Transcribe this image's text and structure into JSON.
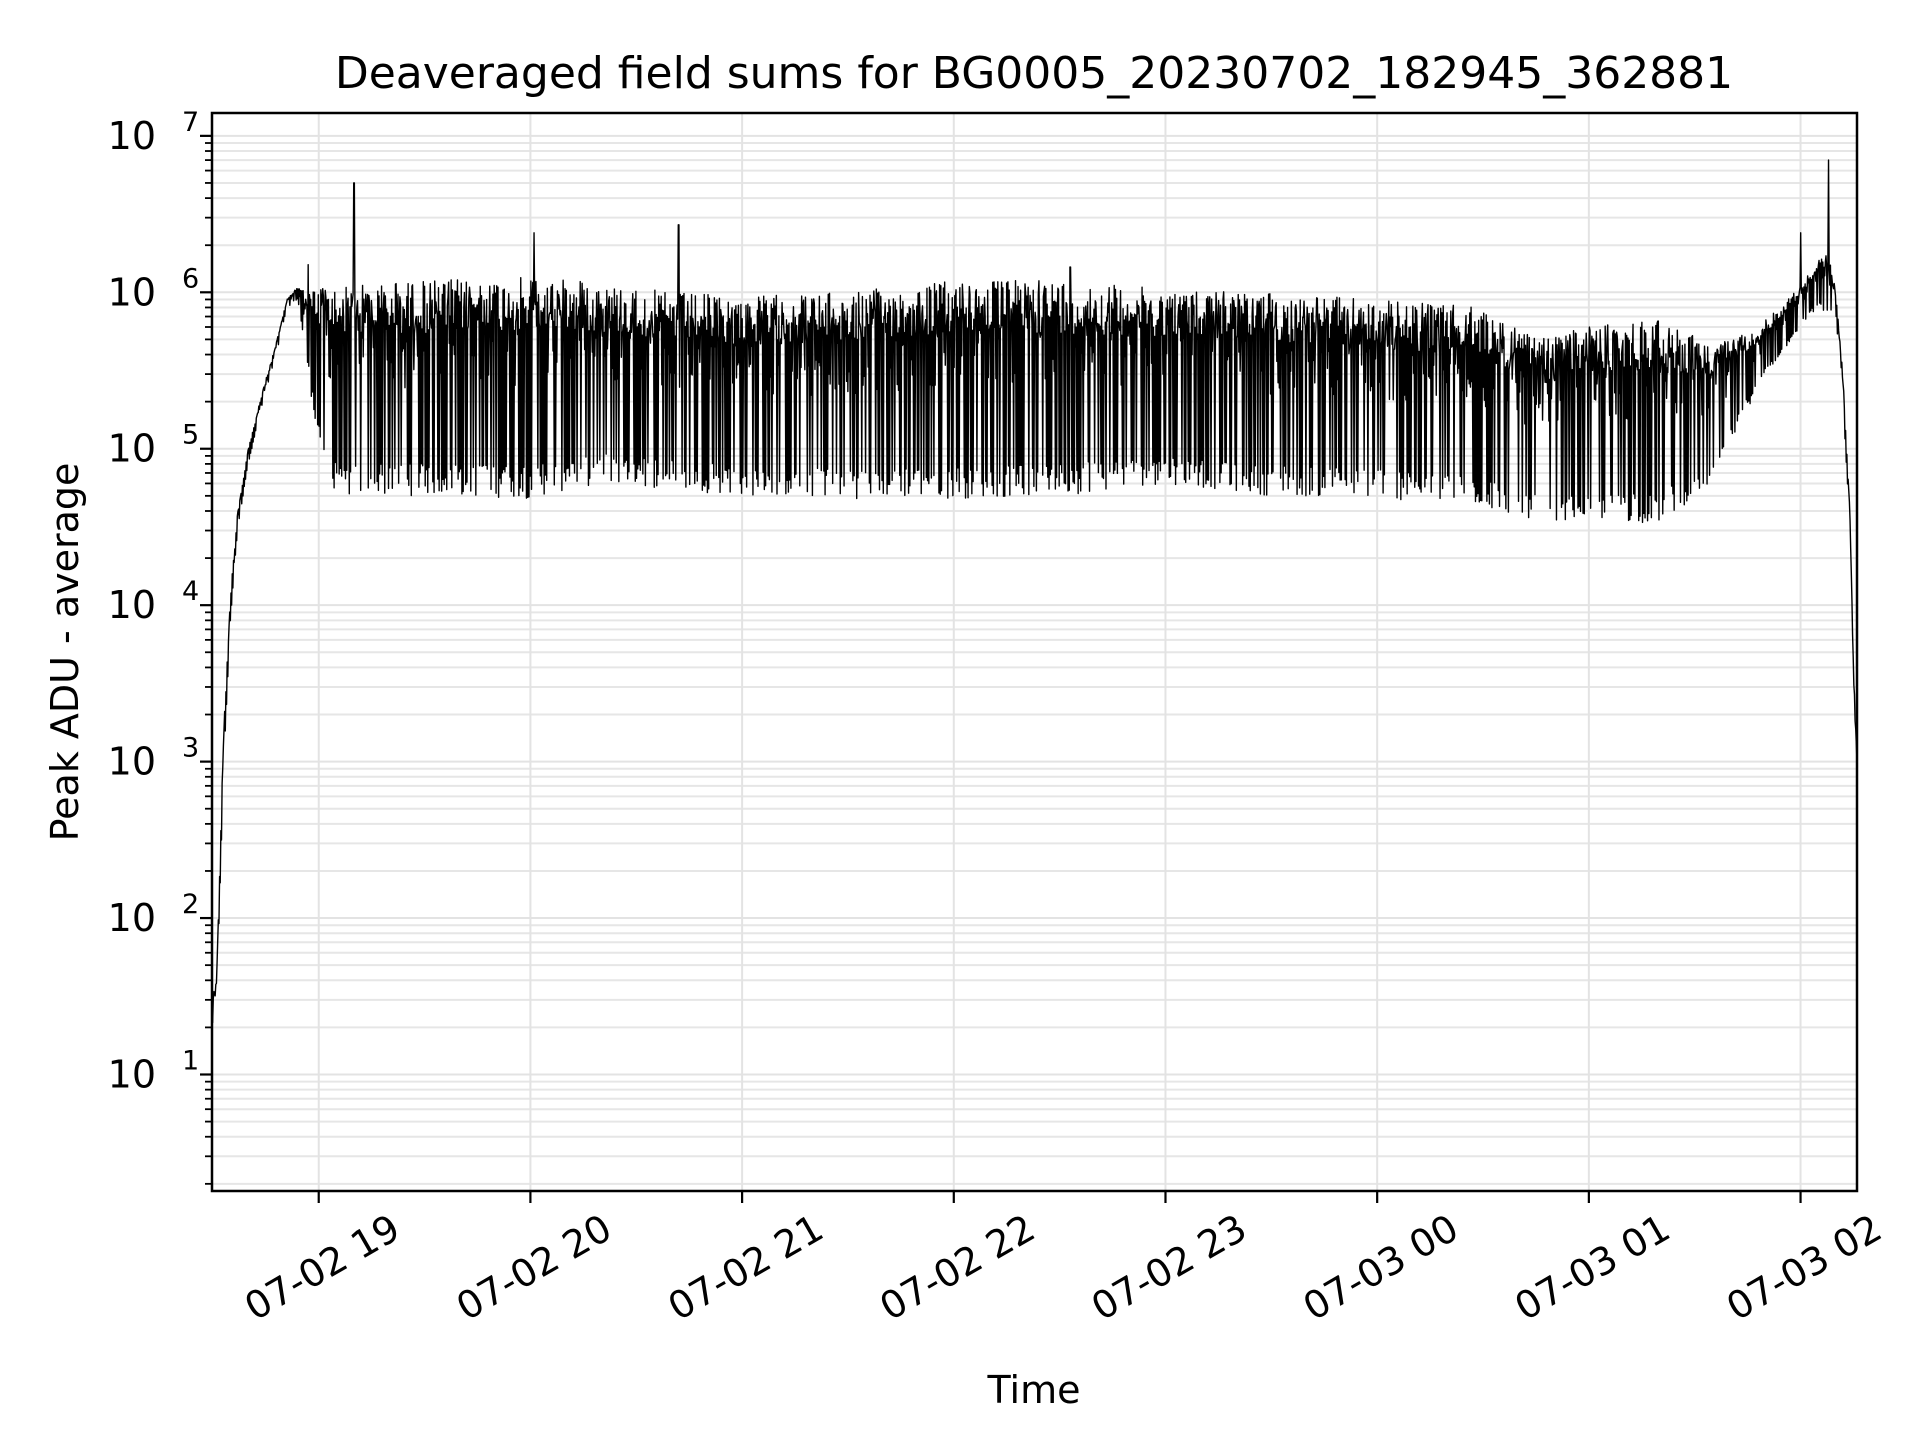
{
  "chart_data": {
    "type": "line",
    "title": "Deaveraged field sums for BG0005_20230702_182945_362881",
    "xlabel": "Time",
    "ylabel": "Peak ADU - average",
    "yscale": "log",
    "ylim": [
      1.8,
      14000000
    ],
    "xlim": [
      "07-02 18:29:45",
      "07-03 02:16:00"
    ],
    "grid": true,
    "x_ticks": [
      {
        "label": "07-02 19",
        "time": "07-02 19:00"
      },
      {
        "label": "07-02 20",
        "time": "07-02 20:00"
      },
      {
        "label": "07-02 21",
        "time": "07-02 21:00"
      },
      {
        "label": "07-02 22",
        "time": "07-02 22:00"
      },
      {
        "label": "07-02 23",
        "time": "07-02 23:00"
      },
      {
        "label": "07-03 00",
        "time": "07-03 00:00"
      },
      {
        "label": "07-03 01",
        "time": "07-03 01:00"
      },
      {
        "label": "07-03 02",
        "time": "07-03 02:00"
      }
    ],
    "y_ticks": [
      {
        "base": "10",
        "exp": "1",
        "value": 10
      },
      {
        "base": "10",
        "exp": "2",
        "value": 100
      },
      {
        "base": "10",
        "exp": "3",
        "value": 1000
      },
      {
        "base": "10",
        "exp": "4",
        "value": 10000
      },
      {
        "base": "10",
        "exp": "5",
        "value": 100000
      },
      {
        "base": "10",
        "exp": "6",
        "value": 1000000
      },
      {
        "base": "10",
        "exp": "7",
        "value": 10000000
      }
    ],
    "series": [
      {
        "color": "#000000",
        "envelope": [
          {
            "x": "07-02 18:29:45",
            "upper": 30,
            "lower": 20
          },
          {
            "x": "07-02 18:31",
            "upper": 40,
            "lower": 25
          },
          {
            "x": "07-02 18:33",
            "upper": 1500,
            "lower": 800
          },
          {
            "x": "07-02 18:35",
            "upper": 12000,
            "lower": 8000
          },
          {
            "x": "07-02 18:37",
            "upper": 40000,
            "lower": 30000
          },
          {
            "x": "07-02 18:40",
            "upper": 100000,
            "lower": 80000
          },
          {
            "x": "07-02 18:44",
            "upper": 230000,
            "lower": 190000
          },
          {
            "x": "07-02 18:48",
            "upper": 480000,
            "lower": 400000
          },
          {
            "x": "07-02 18:51",
            "upper": 900000,
            "lower": 800000
          },
          {
            "x": "07-02 18:54",
            "upper": 1100000,
            "lower": 900000
          },
          {
            "x": "07-02 18:57",
            "upper": 1000000,
            "lower": 300000
          },
          {
            "x": "07-02 19:00",
            "upper": 1100000,
            "lower": 100000
          },
          {
            "x": "07-02 19:05",
            "upper": 1100000,
            "lower": 50000
          },
          {
            "x": "07-02 19:30",
            "upper": 1200000,
            "lower": 50000
          },
          {
            "x": "07-02 20:00",
            "upper": 1250000,
            "lower": 48000
          },
          {
            "x": "07-02 20:20",
            "upper": 1150000,
            "lower": 60000
          },
          {
            "x": "07-02 20:40",
            "upper": 1000000,
            "lower": 55000
          },
          {
            "x": "07-02 21:00",
            "upper": 950000,
            "lower": 50000
          },
          {
            "x": "07-02 21:30",
            "upper": 1000000,
            "lower": 48000
          },
          {
            "x": "07-02 22:00",
            "upper": 1200000,
            "lower": 48000
          },
          {
            "x": "07-02 22:30",
            "upper": 1200000,
            "lower": 50000
          },
          {
            "x": "07-02 23:00",
            "upper": 1050000,
            "lower": 60000
          },
          {
            "x": "07-02 23:30",
            "upper": 1000000,
            "lower": 50000
          },
          {
            "x": "07-03 00:00",
            "upper": 900000,
            "lower": 48000
          },
          {
            "x": "07-03 00:30",
            "upper": 800000,
            "lower": 42000
          },
          {
            "x": "07-03 00:45",
            "upper": 500000,
            "lower": 35000
          },
          {
            "x": "07-03 01:00",
            "upper": 600000,
            "lower": 35000
          },
          {
            "x": "07-03 01:20",
            "upper": 700000,
            "lower": 33000
          },
          {
            "x": "07-03 01:35",
            "upper": 450000,
            "lower": 60000
          },
          {
            "x": "07-03 01:48",
            "upper": 600000,
            "lower": 250000
          },
          {
            "x": "07-03 02:00",
            "upper": 1100000,
            "lower": 600000
          },
          {
            "x": "07-03 02:05",
            "upper": 1600000,
            "lower": 800000
          },
          {
            "x": "07-03 02:08",
            "upper": 1800000,
            "lower": 700000
          },
          {
            "x": "07-03 02:10",
            "upper": 1000000,
            "lower": 700000
          },
          {
            "x": "07-03 02:12",
            "upper": 300000,
            "lower": 200000
          },
          {
            "x": "07-03 02:14",
            "upper": 40000,
            "lower": 30000
          },
          {
            "x": "07-03 02:15",
            "upper": 4000,
            "lower": 3000
          },
          {
            "x": "07-03 02:16",
            "upper": 1000,
            "lower": 1000
          }
        ],
        "spikes": [
          {
            "x": "07-02 18:57",
            "value": 1500000
          },
          {
            "x": "07-02 19:10",
            "value": 5000000
          },
          {
            "x": "07-02 20:01",
            "value": 2400000
          },
          {
            "x": "07-02 20:42",
            "value": 2700000
          },
          {
            "x": "07-02 22:33",
            "value": 1450000
          },
          {
            "x": "07-03 02:00",
            "value": 2400000
          },
          {
            "x": "07-03 02:08",
            "value": 7000000
          }
        ]
      }
    ]
  }
}
